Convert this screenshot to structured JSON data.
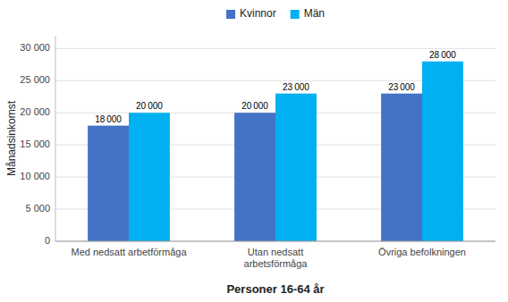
{
  "chart_data": {
    "type": "bar",
    "categories": [
      "Med nedsatt arbetförmåga",
      "Utan nedsatt\narbetsförmåga",
      "Övriga befolkningen"
    ],
    "series": [
      {
        "name": "Kvinnor",
        "color": "#4472c4",
        "values": [
          18000,
          20000,
          23000
        ],
        "value_labels": [
          "18 000",
          "20 000",
          "23 000"
        ]
      },
      {
        "name": "Män",
        "color": "#00b0f0",
        "values": [
          20000,
          23000,
          28000
        ],
        "value_labels": [
          "20 000",
          "23 000",
          "28 000"
        ]
      }
    ],
    "xlabel": "Personer 16-64 år",
    "ylabel": "Månadsinkomst",
    "ylim": [
      0,
      32000
    ],
    "yticks": [
      0,
      {
        "value": 5000,
        "label": "5 000"
      },
      {
        "value": 10000,
        "label": "10 000"
      },
      {
        "value": 15000,
        "label": "15 000"
      },
      {
        "value": 20000,
        "label": "20 000"
      },
      {
        "value": 25000,
        "label": "25 000"
      },
      {
        "value": 30000,
        "label": "30 000"
      }
    ],
    "grid": true,
    "legend": "top",
    "data_labels": true
  }
}
